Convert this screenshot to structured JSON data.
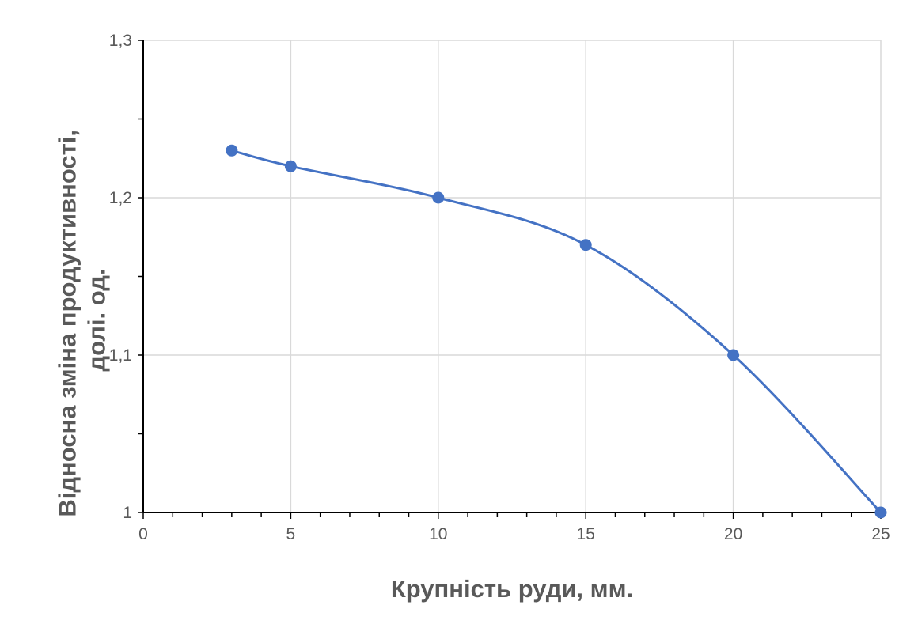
{
  "chart_data": {
    "type": "line",
    "title": "",
    "xlabel": "Крупність руди, мм.",
    "ylabel_lines": [
      "Відносна зміна продуктивності,",
      "долі. од."
    ],
    "x": [
      3,
      5,
      10,
      15,
      20,
      25
    ],
    "series": [
      {
        "values": [
          1.23,
          1.22,
          1.2,
          1.17,
          1.1,
          1.0
        ],
        "color": "#4472c4",
        "smooth": true,
        "markers": true
      }
    ],
    "xlim": [
      0,
      25
    ],
    "ylim": [
      1.0,
      1.3
    ],
    "x_ticks": [
      {
        "value": 0,
        "label": "0"
      },
      {
        "value": 5,
        "label": "5"
      },
      {
        "value": 10,
        "label": "10"
      },
      {
        "value": 15,
        "label": "15"
      },
      {
        "value": 20,
        "label": "20"
      },
      {
        "value": 25,
        "label": "25"
      }
    ],
    "y_ticks": [
      {
        "value": 1.0,
        "label": "1"
      },
      {
        "value": 1.1,
        "label": "1,1"
      },
      {
        "value": 1.2,
        "label": "1,2"
      },
      {
        "value": 1.3,
        "label": "1,3"
      }
    ],
    "x_minor_step": 1,
    "y_minor_step": 0.05,
    "grid": true,
    "legend": "none"
  }
}
